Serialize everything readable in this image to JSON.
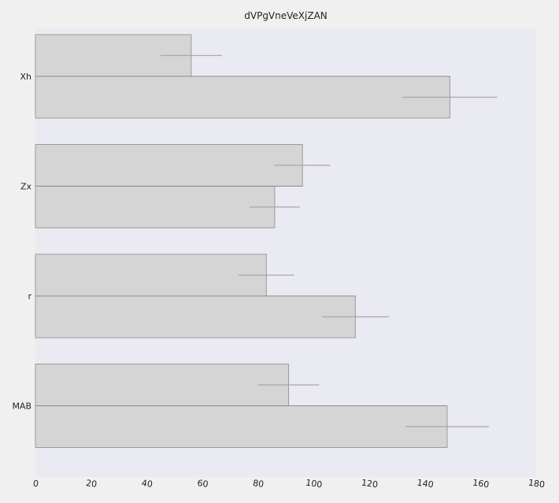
{
  "chart_data": {
    "type": "bar",
    "orientation": "horizontal",
    "title": "dVPgVneVeXjZAN",
    "xlabel": "",
    "ylabel": "",
    "categories": [
      "Xh",
      "Zx",
      "r",
      "MAB"
    ],
    "series": [
      {
        "values": [
          56,
          96,
          83,
          91
        ],
        "errors": [
          11,
          10,
          10,
          11
        ]
      },
      {
        "values": [
          149,
          86,
          115,
          148
        ],
        "errors": [
          17,
          9,
          12,
          15
        ]
      }
    ],
    "xlim": [
      0,
      180
    ],
    "xticks": [
      "0",
      "20",
      "40",
      "60",
      "80",
      "100",
      "120",
      "140",
      "160",
      "180"
    ],
    "grid": false,
    "colors": {
      "figure_bg": "#f0f0f0",
      "plot_bg": "#eaeaf2",
      "bar_fill": "#d5d5d5",
      "bar_edge": "#9a9a9a",
      "error_bar": "#a8a8a8",
      "category_line": "#8a8a8a"
    }
  }
}
